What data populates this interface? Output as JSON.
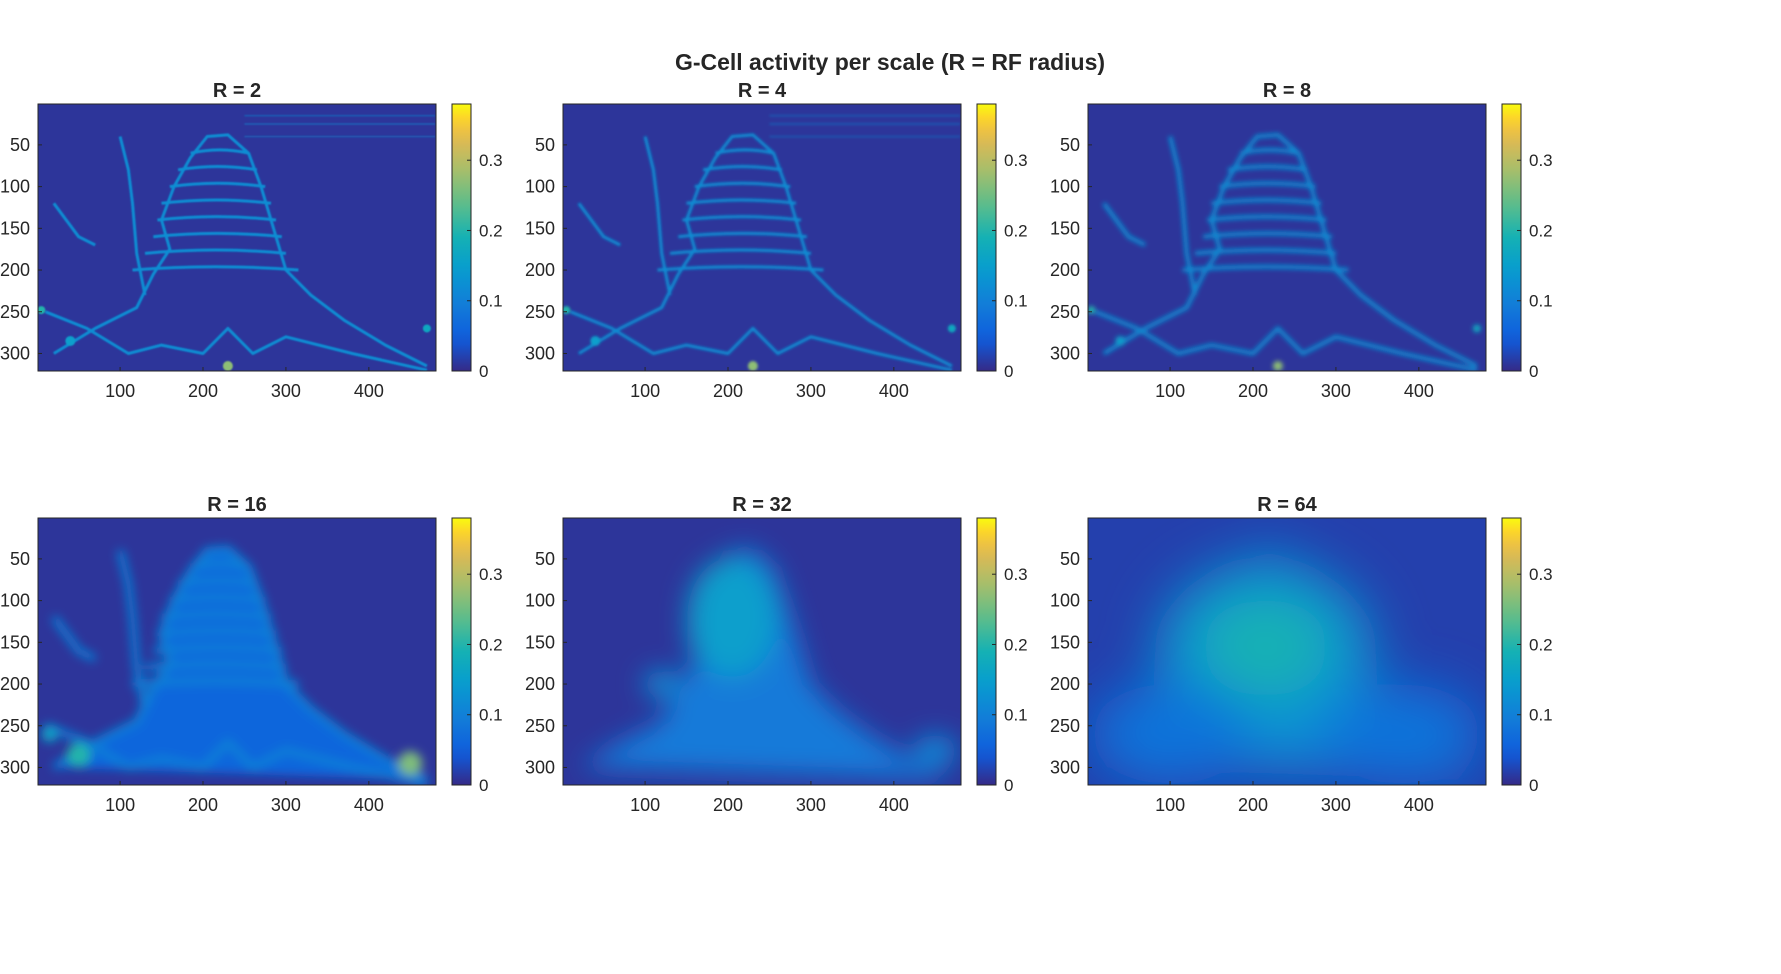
{
  "figure": {
    "title": "G-Cell activity per scale (R = RF radius)"
  },
  "chart_data": [
    {
      "type": "heatmap",
      "title": "R = 2",
      "radius": 2,
      "xlim": [
        1,
        481
      ],
      "ylim": [
        1,
        321
      ],
      "y_reversed": true,
      "xticks": [
        100,
        200,
        300,
        400
      ],
      "yticks": [
        50,
        100,
        150,
        200,
        250,
        300
      ],
      "colorbar": {
        "clim": [
          0,
          0.38
        ],
        "ticks": [
          0,
          0.1,
          0.2,
          0.3
        ],
        "colormap": "parula"
      },
      "background_value": 0.01,
      "peak_value": 0.27,
      "content": "thin edge-detection outlines of a tiered mountain / stacked-layer shape"
    },
    {
      "type": "heatmap",
      "title": "R = 4",
      "radius": 4,
      "xlim": [
        1,
        481
      ],
      "ylim": [
        1,
        321
      ],
      "y_reversed": true,
      "xticks": [
        100,
        200,
        300,
        400
      ],
      "yticks": [
        50,
        100,
        150,
        200,
        250,
        300
      ],
      "colorbar": {
        "clim": [
          0,
          0.38
        ],
        "ticks": [
          0,
          0.1,
          0.2,
          0.3
        ],
        "colormap": "parula"
      },
      "background_value": 0.01,
      "peak_value": 0.3,
      "content": "slightly thicker edge outlines of the same tiered shape"
    },
    {
      "type": "heatmap",
      "title": "R = 8",
      "radius": 8,
      "xlim": [
        1,
        481
      ],
      "ylim": [
        1,
        321
      ],
      "y_reversed": true,
      "xticks": [
        100,
        200,
        300,
        400
      ],
      "yticks": [
        50,
        100,
        150,
        200,
        250,
        300
      ],
      "colorbar": {
        "clim": [
          0,
          0.38
        ],
        "ticks": [
          0,
          0.1,
          0.2,
          0.3
        ],
        "colormap": "parula"
      },
      "background_value": 0.01,
      "peak_value": 0.2,
      "content": "blurred edge outlines, layered stripes still visible"
    },
    {
      "type": "heatmap",
      "title": "R = 16",
      "radius": 16,
      "xlim": [
        1,
        481
      ],
      "ylim": [
        1,
        321
      ],
      "y_reversed": true,
      "xticks": [
        100,
        200,
        300,
        400
      ],
      "yticks": [
        50,
        100,
        150,
        200,
        250,
        300
      ],
      "colorbar": {
        "clim": [
          0,
          0.38
        ],
        "ticks": [
          0,
          0.1,
          0.2,
          0.3
        ],
        "colormap": "parula"
      },
      "background_value": 0.01,
      "peak_value": 0.26,
      "content": "strongly blurred shape with faint stripes; hot spots near (450,295) and (50,285)"
    },
    {
      "type": "heatmap",
      "title": "R = 32",
      "radius": 32,
      "xlim": [
        1,
        481
      ],
      "ylim": [
        1,
        321
      ],
      "y_reversed": true,
      "xticks": [
        100,
        200,
        300,
        400
      ],
      "yticks": [
        50,
        100,
        150,
        200,
        250,
        300
      ],
      "colorbar": {
        "clim": [
          0,
          0.38
        ],
        "ticks": [
          0,
          0.1,
          0.2,
          0.3
        ],
        "colormap": "parula"
      },
      "background_value": 0.01,
      "peak_value": 0.16,
      "content": "smooth blob following the mountain silhouette, peak near (205,110)"
    },
    {
      "type": "heatmap",
      "title": "R = 64",
      "radius": 64,
      "xlim": [
        1,
        481
      ],
      "ylim": [
        1,
        321
      ],
      "y_reversed": true,
      "xticks": [
        100,
        200,
        300,
        400
      ],
      "yticks": [
        50,
        100,
        150,
        200,
        250,
        300
      ],
      "colorbar": {
        "clim": [
          0,
          0.38
        ],
        "ticks": [
          0,
          0.1,
          0.2,
          0.3
        ],
        "colormap": "parula"
      },
      "background_value": 0.02,
      "peak_value": 0.2,
      "content": "broad smooth blob, peak near (215,155)"
    }
  ]
}
